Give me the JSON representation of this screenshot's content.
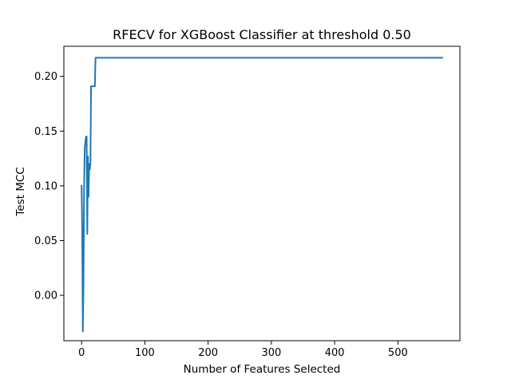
{
  "chart_data": {
    "type": "line",
    "title": "RFECV for XGBoost Classifier at threshold 0.50",
    "xlabel": "Number of Features Selected",
    "ylabel": "Test MCC",
    "xlim": [
      -28,
      598
    ],
    "ylim": [
      -0.0415,
      0.2275
    ],
    "x_ticks": [
      0,
      100,
      200,
      300,
      400,
      500
    ],
    "y_ticks": [
      0.0,
      0.05,
      0.1,
      0.15,
      0.2
    ],
    "x_tick_labels": [
      "0",
      "100",
      "200",
      "300",
      "400",
      "500"
    ],
    "y_tick_labels": [
      "0.00",
      "0.05",
      "0.10",
      "0.15",
      "0.20"
    ],
    "grid": false,
    "series": [
      {
        "color": "#1f77b4",
        "x": [
          0,
          1,
          2,
          3,
          4,
          5,
          6,
          7,
          8,
          9,
          10,
          11,
          12,
          13,
          14,
          15,
          16,
          17,
          18,
          19,
          20,
          21,
          22,
          23,
          24,
          25,
          30,
          50,
          100,
          200,
          300,
          400,
          500,
          570
        ],
        "y": [
          0.1,
          0.06,
          -0.033,
          0.01,
          0.1,
          0.135,
          0.14,
          0.145,
          0.145,
          0.056,
          0.127,
          0.09,
          0.12,
          0.115,
          0.122,
          0.191,
          0.191,
          0.191,
          0.191,
          0.191,
          0.191,
          0.191,
          0.217,
          0.217,
          0.217,
          0.217,
          0.217,
          0.217,
          0.217,
          0.217,
          0.217,
          0.217,
          0.217,
          0.217
        ]
      }
    ]
  }
}
